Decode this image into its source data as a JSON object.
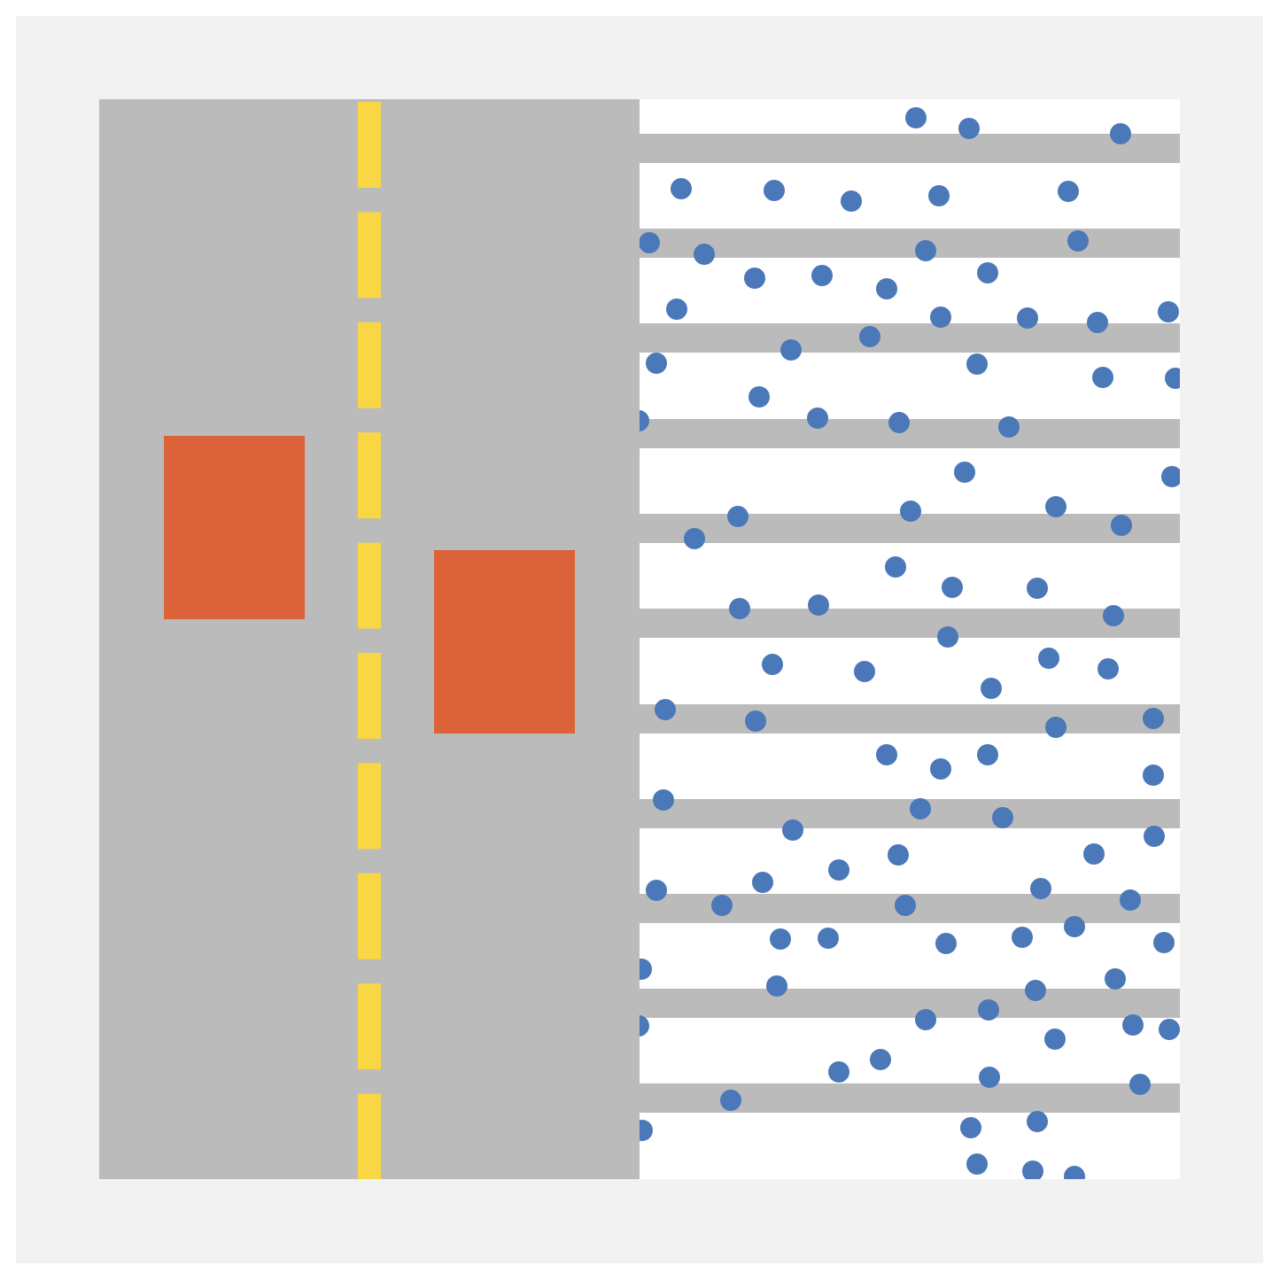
{
  "colors": {
    "outer_background": "#ffffff",
    "panel_background": "#f2f2f2",
    "road": "#bbbbbb",
    "lane_divider": "#f9d643",
    "vehicle": "#dc6239",
    "sidewalk_stripe": "#bbbbbb",
    "sidewalk_background": "#ffffff",
    "pedestrian": "#4a78b8"
  },
  "scene": {
    "road_lane_dashes": 10,
    "vehicles": 2,
    "crosswalk_stripes": 11,
    "pedestrians": 110
  }
}
